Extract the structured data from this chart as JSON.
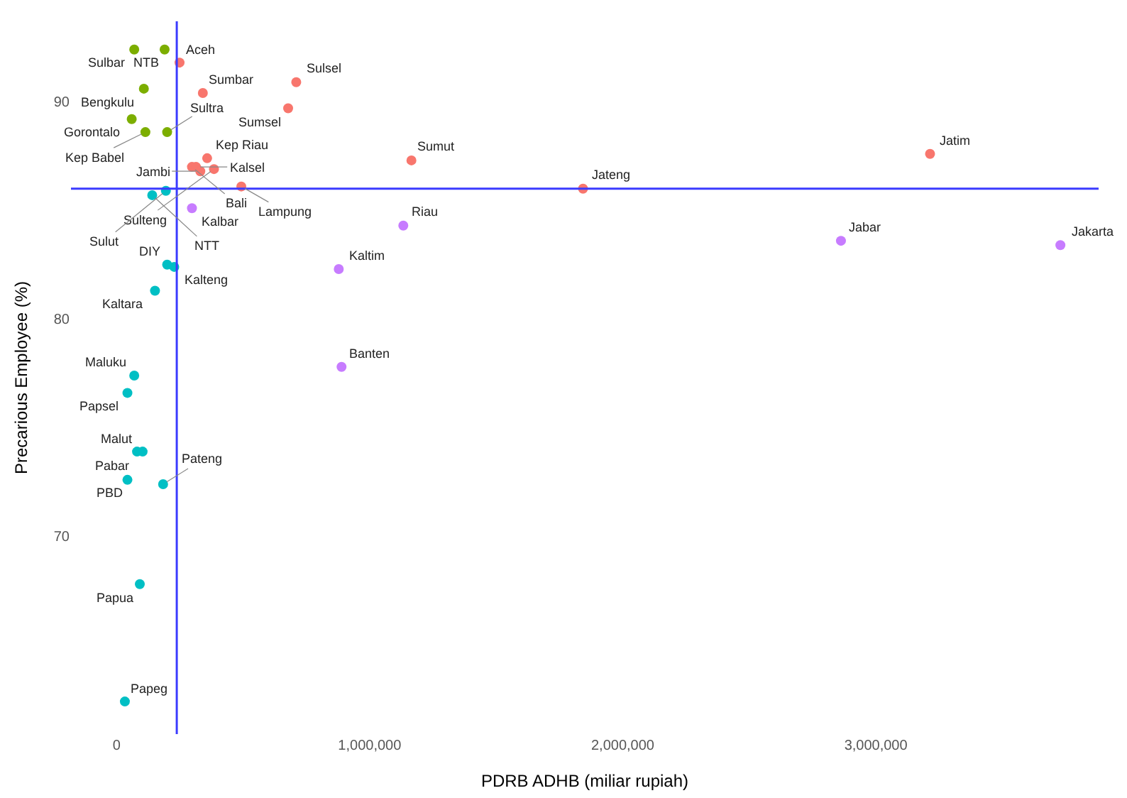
{
  "chart_data": {
    "type": "scatter",
    "xlabel": "PDRB ADHB (miliar rupiah)",
    "ylabel": "Precarious Employee (%)",
    "xlim": [
      -180000,
      3880000
    ],
    "ylim": [
      60.9,
      93.7
    ],
    "xticks": [
      0,
      {
        "value": 1000000,
        "label": "1,000,000"
      },
      {
        "value": 2000000,
        "label": "2,000,000"
      },
      {
        "value": 3000000,
        "label": "3,000,000"
      }
    ],
    "yticks": [
      70,
      80,
      90
    ],
    "grid": false,
    "marker": "circle",
    "ref_lines": [
      {
        "axis": "x",
        "value": 238000,
        "color": "#3b3bff"
      },
      {
        "axis": "y",
        "value": 86,
        "color": "#3b3bff"
      }
    ],
    "series": [
      {
        "color": "#7cae00",
        "x": [
          190000,
          70000,
          108000,
          60000,
          200000,
          114000
        ],
        "values": [
          92.4,
          92.4,
          90.6,
          89.2,
          88.6,
          88.6
        ],
        "value_labels": [
          "NTB",
          "Sulbar",
          "Bengkulu",
          "Gorontalo",
          "Sultra",
          "Kep Babel"
        ]
      },
      {
        "color": "#f8766d",
        "x": [
          249000,
          341000,
          710000,
          678000,
          358000,
          298000,
          314000,
          331000,
          385000,
          493000,
          1165000,
          1843000,
          3214000
        ],
        "values": [
          91.8,
          90.4,
          90.9,
          89.7,
          87.4,
          87.0,
          87.0,
          86.8,
          86.9,
          86.1,
          87.3,
          86.0,
          87.6
        ],
        "value_labels": [
          "Aceh",
          "Sumbar",
          "Sulsel",
          "Sumsel",
          "Kep Riau",
          "Bali",
          "Kalsel",
          "Jambi",
          "Sulteng",
          "Lampung",
          "Sumut",
          "Jateng",
          "Jatim"
        ]
      },
      {
        "color": "#c77cff",
        "x": [
          298000,
          1133000,
          878000,
          889000,
          2862000,
          3729000
        ],
        "values": [
          85.1,
          84.3,
          82.3,
          77.8,
          83.6,
          83.4
        ],
        "value_labels": [
          "Kalbar",
          "Riau",
          "Kaltim",
          "Banten",
          "Jabar",
          "Jakarta"
        ]
      },
      {
        "color": "#00bfc4",
        "x": [
          195000,
          141000,
          200000,
          228000,
          152000,
          70000,
          43000,
          81000,
          103000,
          43000,
          184000,
          92000,
          33000
        ],
        "values": [
          85.9,
          85.7,
          82.5,
          82.4,
          81.3,
          77.4,
          76.6,
          73.9,
          73.9,
          72.6,
          72.4,
          67.8,
          62.4
        ],
        "value_labels": [
          "Sulut",
          "NTT",
          "DIY",
          "Kalteng",
          "Kaltara",
          "Maluku",
          "Papsel",
          "Pabar",
          "Malut",
          "PBD",
          "Pateng",
          "Papua",
          "Papeg"
        ]
      }
    ]
  }
}
